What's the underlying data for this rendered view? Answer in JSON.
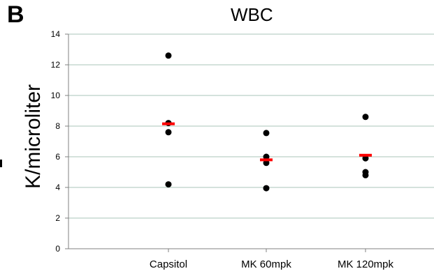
{
  "panel_label": "B",
  "chart_data": {
    "type": "scatter",
    "title": "WBC",
    "xlabel": "",
    "ylabel": "K/microliter",
    "ylim": [
      0,
      14
    ],
    "yticks": [
      0,
      2,
      4,
      6,
      8,
      10,
      12,
      14
    ],
    "grid": true,
    "categories": [
      "Capsitol",
      "MK 60mpk",
      "MK 120mpk"
    ],
    "points": [
      [
        12.6,
        8.2,
        7.6,
        4.2
      ],
      [
        7.55,
        6.0,
        5.6,
        3.95
      ],
      [
        8.6,
        5.9,
        5.0,
        4.8
      ]
    ],
    "means": [
      8.15,
      5.8,
      6.1
    ],
    "colors": {
      "points": "#000000",
      "mean": "#ff0000",
      "grid": "#a9c4b9",
      "axis": "#808080"
    }
  }
}
